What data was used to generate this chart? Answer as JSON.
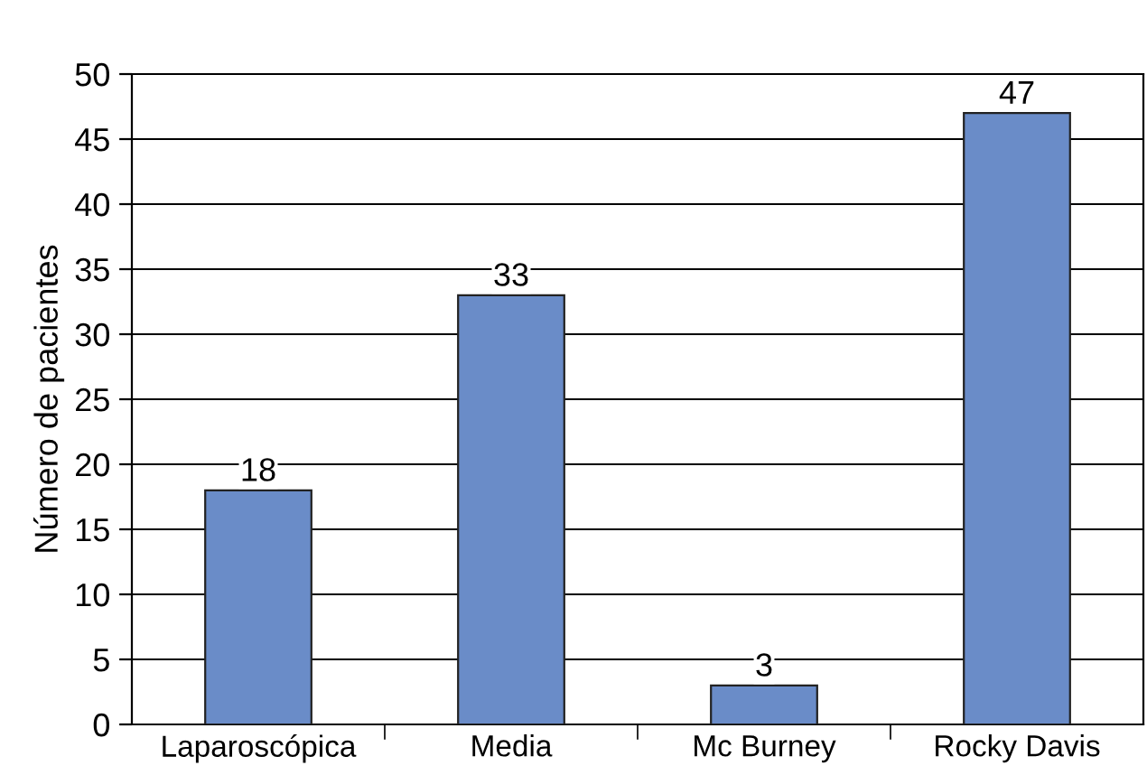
{
  "chart_data": {
    "type": "bar",
    "ylabel": "Número de pacientes",
    "categories": [
      "Laparoscópica",
      "Media",
      "Mc Burney",
      "Rocky Davis"
    ],
    "values": [
      18,
      33,
      3,
      47
    ],
    "color": "#6a8cc8",
    "ylim": [
      0,
      50
    ],
    "yticks": [
      0,
      5,
      10,
      15,
      20,
      25,
      30,
      35,
      40,
      45,
      50
    ],
    "grid": "y",
    "data_labels": true
  }
}
